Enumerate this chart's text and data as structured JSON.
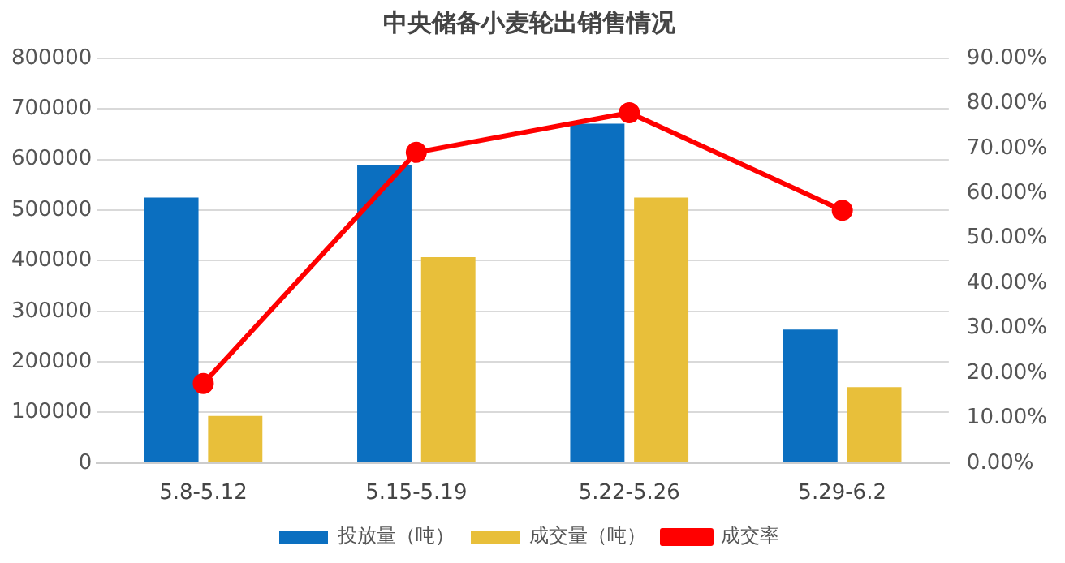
{
  "chart_data": {
    "type": "bar",
    "title": "中央储备小麦轮出销售情况",
    "categories": [
      "5.8-5.12",
      "5.15-5.19",
      "5.22-5.26",
      "5.29-6.2"
    ],
    "series": [
      {
        "name": "投放量（吨）",
        "color": "#0b6fc0",
        "values": [
          525000,
          589000,
          671000,
          264000
        ]
      },
      {
        "name": "成交量（吨）",
        "color": "#e8bf3a",
        "values": [
          93000,
          407000,
          525000,
          150000
        ]
      },
      {
        "name": "成交率",
        "type": "line",
        "axis": "y2",
        "color": "#ff0000",
        "values": [
          17.7,
          69.1,
          77.9,
          56.2
        ]
      }
    ],
    "ylim": [
      0,
      800000
    ],
    "yticks": [
      0,
      100000,
      200000,
      300000,
      400000,
      500000,
      600000,
      700000,
      800000
    ],
    "y2lim": [
      0,
      90
    ],
    "y2ticks": [
      {
        "value": 0,
        "label": "0.00%"
      },
      {
        "value": 10,
        "label": "10.00%"
      },
      {
        "value": 20,
        "label": "20.00%"
      },
      {
        "value": 30,
        "label": "30.00%"
      },
      {
        "value": 40,
        "label": "40.00%"
      },
      {
        "value": 50,
        "label": "50.00%"
      },
      {
        "value": 60,
        "label": "60.00%"
      },
      {
        "value": 70,
        "label": "70.00%"
      },
      {
        "value": 80,
        "label": "80.00%"
      },
      {
        "value": 90,
        "label": "90.00%"
      }
    ],
    "grid": "y",
    "legend": "bottom",
    "marker": "circle"
  }
}
